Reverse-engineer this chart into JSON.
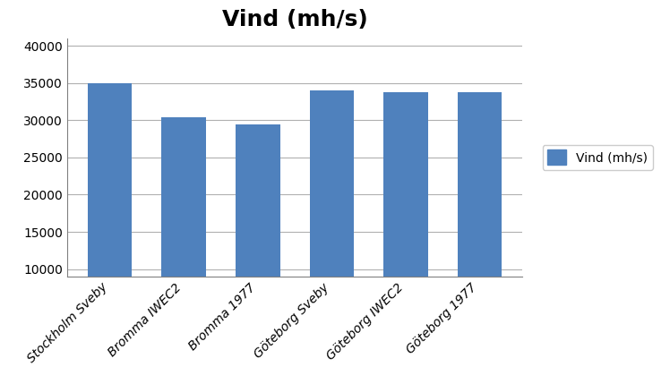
{
  "title": "Vind (mh/s)",
  "categories": [
    "Stockholm Sveby",
    "Bromma IWEC2",
    "Bromma 1977",
    "Göteborg Sveby",
    "Göteborg IWEC2",
    "Göteborg 1977"
  ],
  "values": [
    35000,
    30400,
    29400,
    34000,
    33800,
    33800
  ],
  "bar_color": "#4f81bd",
  "ylim": [
    9000,
    41000
  ],
  "yticks": [
    10000,
    15000,
    20000,
    25000,
    30000,
    35000,
    40000
  ],
  "legend_label": "Vind (mh/s)",
  "title_fontsize": 18,
  "tick_fontsize": 10,
  "legend_fontsize": 10,
  "background_color": "#ffffff",
  "bar_width": 0.6,
  "grid_color": "#b0b0b0",
  "axis_color": "#808080"
}
